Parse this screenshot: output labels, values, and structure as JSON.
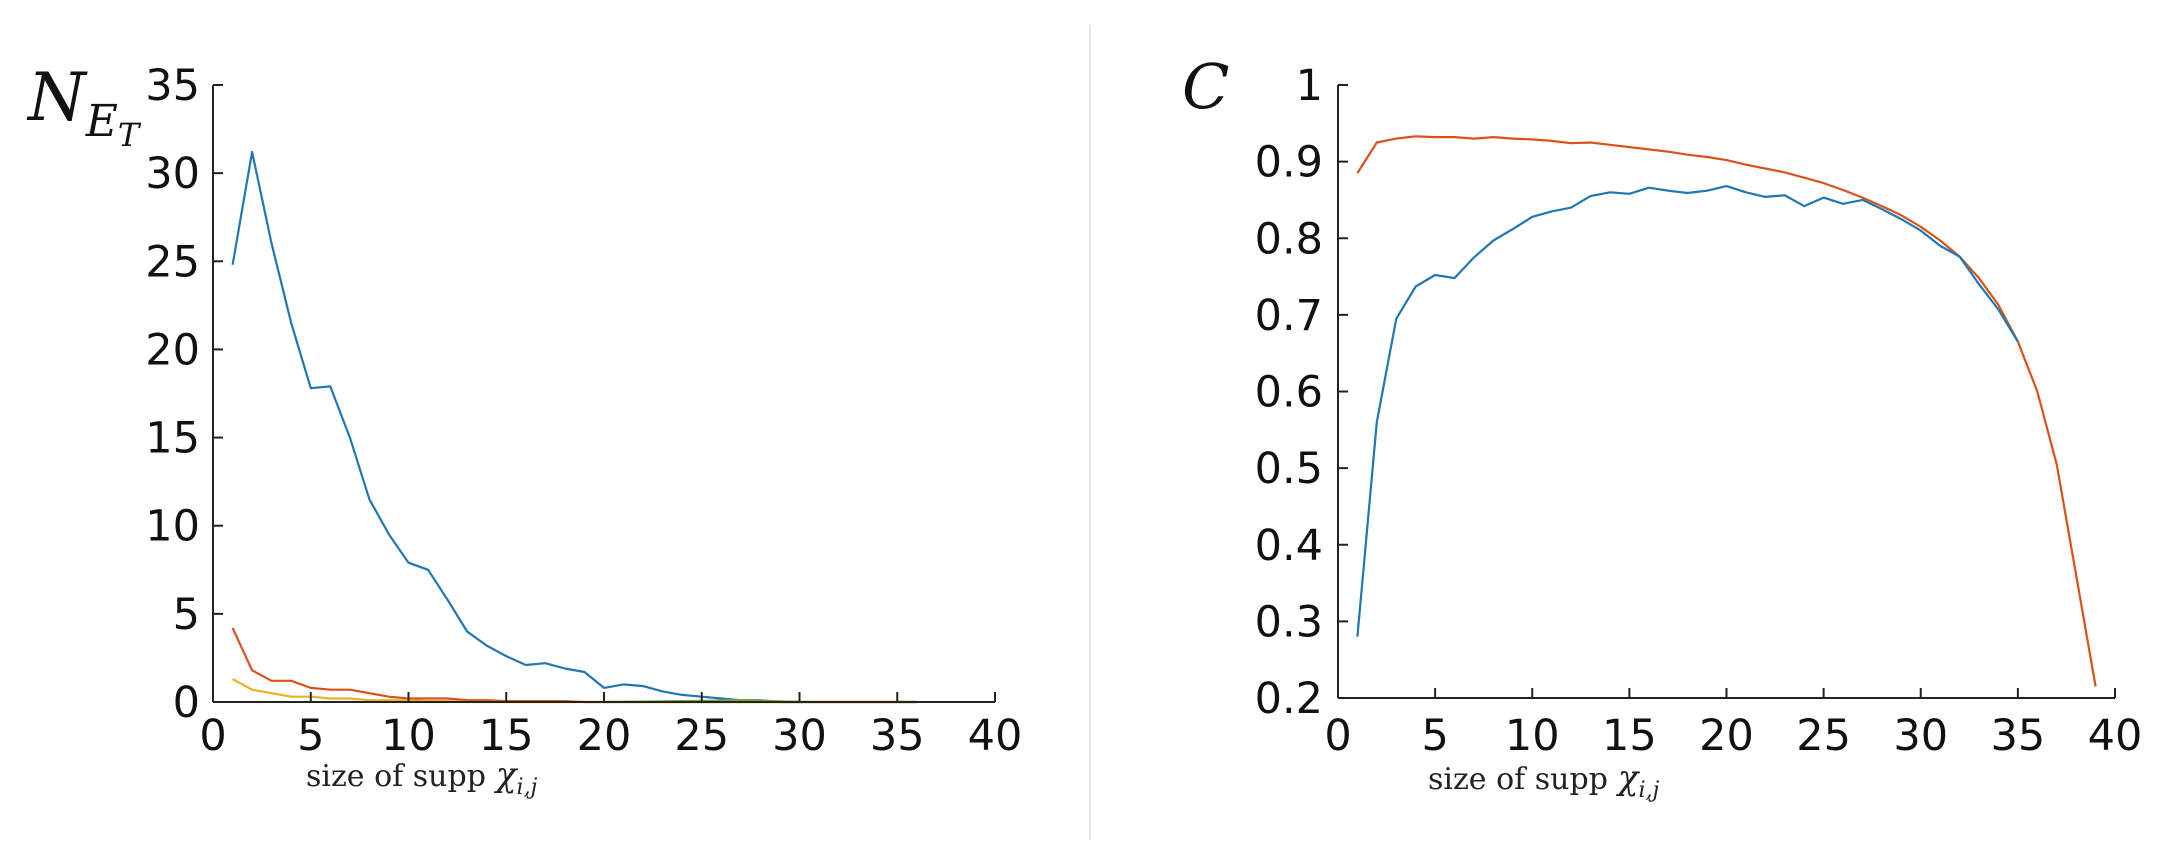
{
  "charts": [
    {
      "id": "left",
      "chart_data": {
        "type": "line",
        "title": "",
        "ylabel_main": "N",
        "ylabel_sub": "E",
        "ylabel_subsub": "T",
        "xlabel_text": "size of supp",
        "xlabel_symbol": "χ",
        "xlabel_sub": "i,j",
        "xlim": [
          0,
          40
        ],
        "ylim": [
          0,
          35
        ],
        "xticks": [
          0,
          5,
          10,
          15,
          20,
          25,
          30,
          35,
          40
        ],
        "yticks": [
          0,
          5,
          10,
          15,
          20,
          25,
          30,
          35
        ],
        "grid": false,
        "series": [
          {
            "color": "#1f77b4",
            "x": [
              1,
              2,
              3,
              4,
              5,
              6,
              7,
              8,
              9,
              10,
              11,
              12,
              13,
              14,
              15,
              16,
              17,
              18,
              19,
              20,
              21,
              22,
              23,
              24,
              25,
              26,
              27,
              28,
              29,
              30,
              31,
              32,
              33,
              34,
              35,
              36
            ],
            "y": [
              24.8,
              31.2,
              26,
              21.5,
              17.8,
              17.9,
              15,
              11.5,
              9.5,
              7.9,
              7.5,
              5.8,
              4,
              3.2,
              2.6,
              2.1,
              2.2,
              1.9,
              1.7,
              0.8,
              1,
              0.9,
              0.6,
              0.4,
              0.3,
              0.2,
              0.1,
              0.1,
              0,
              0,
              0,
              0,
              0,
              0,
              0,
              0
            ]
          },
          {
            "color": "#d95319",
            "x": [
              1,
              2,
              3,
              4,
              5,
              6,
              7,
              8,
              9,
              10,
              11,
              12,
              13,
              14,
              15,
              16,
              17,
              18,
              19,
              20,
              21,
              22,
              23,
              24,
              25,
              26,
              27,
              28,
              29,
              30,
              31,
              32,
              33,
              34,
              35,
              36
            ],
            "y": [
              4.2,
              1.8,
              1.2,
              1.2,
              0.8,
              0.7,
              0.7,
              0.5,
              0.3,
              0.2,
              0.2,
              0.2,
              0.1,
              0.1,
              0.05,
              0.05,
              0.05,
              0.05,
              0,
              0,
              0,
              0,
              0,
              0,
              0,
              0,
              0,
              0,
              0,
              0,
              0,
              0,
              0,
              0,
              0,
              0
            ]
          },
          {
            "color": "#edb120",
            "x": [
              1,
              2,
              3,
              4,
              5,
              6,
              7,
              8,
              9,
              10,
              11,
              12,
              13,
              14,
              15,
              16,
              17,
              18,
              19,
              20,
              21,
              22,
              23,
              24,
              25,
              26,
              27,
              28,
              29,
              30,
              31,
              32,
              33,
              34,
              35,
              36
            ],
            "y": [
              1.3,
              0.7,
              0.5,
              0.3,
              0.3,
              0.2,
              0.2,
              0.1,
              0.1,
              0.1,
              0.05,
              0.05,
              0,
              0,
              0,
              0,
              0,
              0,
              0,
              0,
              0,
              0,
              0,
              0,
              0,
              0,
              0,
              0,
              0,
              0,
              0,
              0,
              0,
              0,
              0,
              0
            ]
          },
          {
            "color": "#77ac30",
            "x": [
              20,
              22,
              24,
              26,
              27,
              28,
              29,
              30
            ],
            "y": [
              0,
              0.02,
              0.05,
              0.08,
              0.1,
              0.08,
              0.04,
              0
            ]
          }
        ]
      }
    },
    {
      "id": "right",
      "chart_data": {
        "type": "line",
        "title": "",
        "ylabel_main": "C",
        "xlabel_text": "size of supp",
        "xlabel_symbol": "χ",
        "xlabel_sub": "i,j",
        "xlim": [
          0,
          40
        ],
        "ylim": [
          0.2,
          1
        ],
        "xticks": [
          0,
          5,
          10,
          15,
          20,
          25,
          30,
          35,
          40
        ],
        "yticks": [
          0.2,
          0.3,
          0.4,
          0.5,
          0.6,
          0.7,
          0.8,
          0.9,
          1
        ],
        "ytick_labels": [
          "0.2",
          "0.3",
          "0.4",
          "0.5",
          "0.6",
          "0.7",
          "0.8",
          "0.9",
          "1"
        ],
        "grid": false,
        "series": [
          {
            "color": "#d95319",
            "x": [
              1,
              2,
              3,
              4,
              5,
              6,
              7,
              8,
              9,
              10,
              11,
              12,
              13,
              14,
              15,
              16,
              17,
              18,
              19,
              20,
              21,
              22,
              23,
              24,
              25,
              26,
              27,
              28,
              29,
              30,
              31,
              32,
              33,
              34,
              35,
              36,
              37,
              38,
              39
            ],
            "y": [
              0.885,
              0.925,
              0.93,
              0.933,
              0.932,
              0.932,
              0.93,
              0.932,
              0.93,
              0.929,
              0.927,
              0.924,
              0.925,
              0.922,
              0.919,
              0.916,
              0.913,
              0.909,
              0.906,
              0.902,
              0.896,
              0.891,
              0.886,
              0.879,
              0.872,
              0.863,
              0.853,
              0.842,
              0.83,
              0.815,
              0.797,
              0.776,
              0.748,
              0.713,
              0.665,
              0.6,
              0.505,
              0.36,
              0.215
            ]
          },
          {
            "color": "#1f77b4",
            "x": [
              1,
              2,
              3,
              4,
              5,
              6,
              7,
              8,
              9,
              10,
              11,
              12,
              13,
              14,
              15,
              16,
              17,
              18,
              19,
              20,
              21,
              22,
              23,
              24,
              25,
              26,
              27,
              28,
              29,
              30,
              31,
              32,
              33,
              34,
              35
            ],
            "y": [
              0.28,
              0.56,
              0.695,
              0.737,
              0.752,
              0.748,
              0.775,
              0.797,
              0.812,
              0.828,
              0.835,
              0.84,
              0.855,
              0.86,
              0.858,
              0.866,
              0.862,
              0.859,
              0.862,
              0.868,
              0.86,
              0.854,
              0.856,
              0.842,
              0.853,
              0.845,
              0.85,
              0.838,
              0.825,
              0.81,
              0.79,
              0.776,
              0.74,
              0.707,
              0.665
            ]
          }
        ]
      }
    }
  ]
}
